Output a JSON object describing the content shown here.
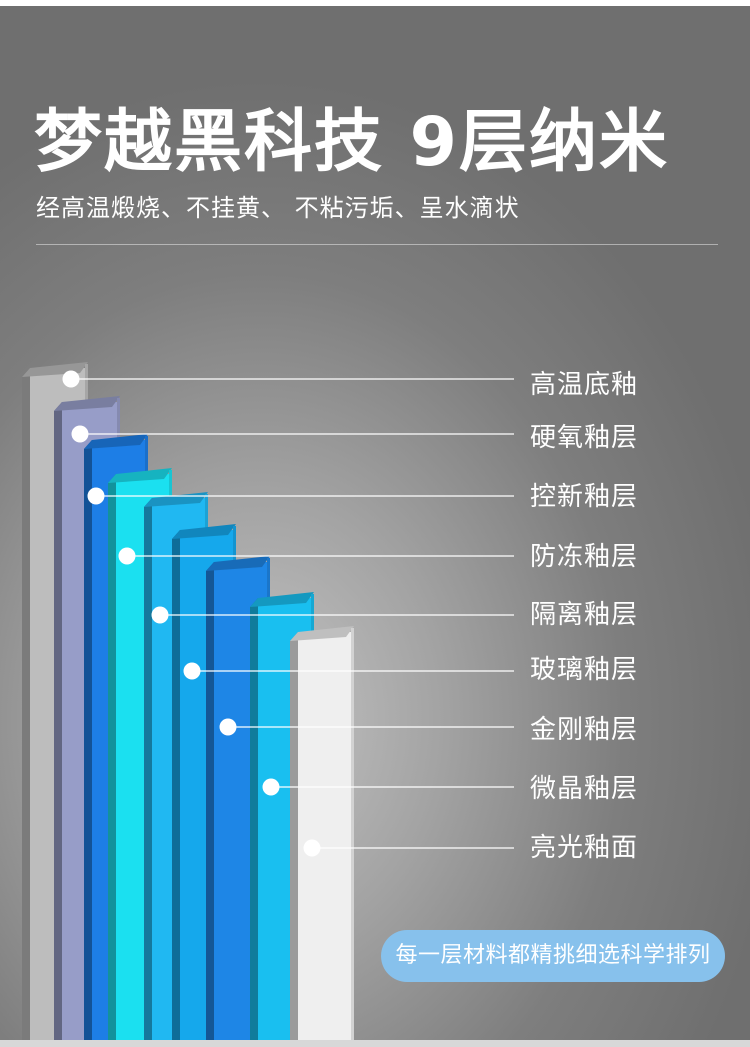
{
  "header": {
    "title": "梦越黑科技 9层纳米",
    "subtitle": "经高温煅烧、不挂黄、 不粘污垢、呈水滴状"
  },
  "layers": [
    {
      "label": "高温底釉",
      "color": "#bdbdbd"
    },
    {
      "label": "硬氧釉层",
      "color": "#979dc8"
    },
    {
      "label": "控新釉层",
      "color": "#1d7ee6"
    },
    {
      "label": "防冻釉层",
      "color": "#1be0f0"
    },
    {
      "label": "隔离釉层",
      "color": "#20b8f2"
    },
    {
      "label": "玻璃釉层",
      "color": "#15a8ec"
    },
    {
      "label": "金刚釉层",
      "color": "#1e86e6"
    },
    {
      "label": "微晶釉层",
      "color": "#19bff0"
    },
    {
      "label": "亮光釉面",
      "color": "#efefef"
    }
  ],
  "note": "每一层材料都精挑细选科学排列"
}
